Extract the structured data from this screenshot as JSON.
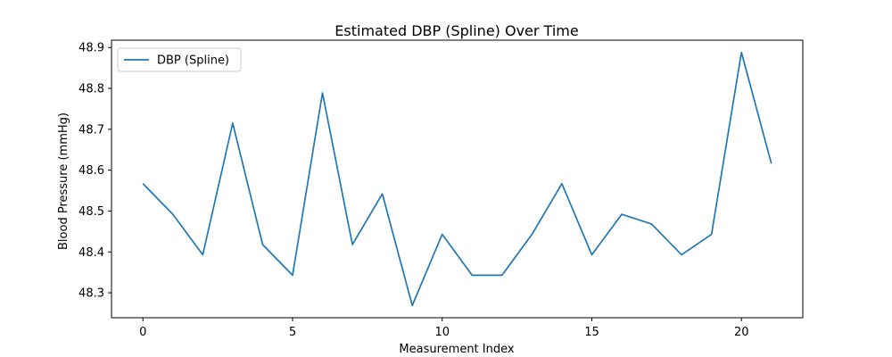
{
  "chart_data": {
    "type": "line",
    "title": "Estimated DBP (Spline) Over Time",
    "xlabel": "Measurement Index",
    "ylabel": "Blood Pressure (mmHg)",
    "x": [
      0,
      1,
      2,
      3,
      4,
      5,
      6,
      7,
      8,
      9,
      10,
      11,
      12,
      13,
      14,
      15,
      16,
      17,
      18,
      19,
      20,
      21
    ],
    "series": [
      {
        "name": "DBP (Spline)",
        "color": "#1f77b4",
        "values": [
          48.567,
          48.492,
          48.393,
          48.715,
          48.418,
          48.343,
          48.789,
          48.418,
          48.542,
          48.269,
          48.443,
          48.343,
          48.343,
          48.443,
          48.567,
          48.393,
          48.492,
          48.468,
          48.393,
          48.443,
          48.888,
          48.616
        ]
      }
    ],
    "xlim": [
      -1.05,
      22.05
    ],
    "ylim": [
      48.239,
      48.918
    ],
    "xticks": [
      0,
      5,
      10,
      15,
      20
    ],
    "xtick_labels": [
      "0",
      "5",
      "10",
      "15",
      "20"
    ],
    "yticks": [
      48.3,
      48.4,
      48.5,
      48.6,
      48.7,
      48.8,
      48.9
    ],
    "ytick_labels": [
      "48.3",
      "48.4",
      "48.5",
      "48.6",
      "48.7",
      "48.8",
      "48.9"
    ],
    "grid": false,
    "legend_position": "upper-left"
  }
}
